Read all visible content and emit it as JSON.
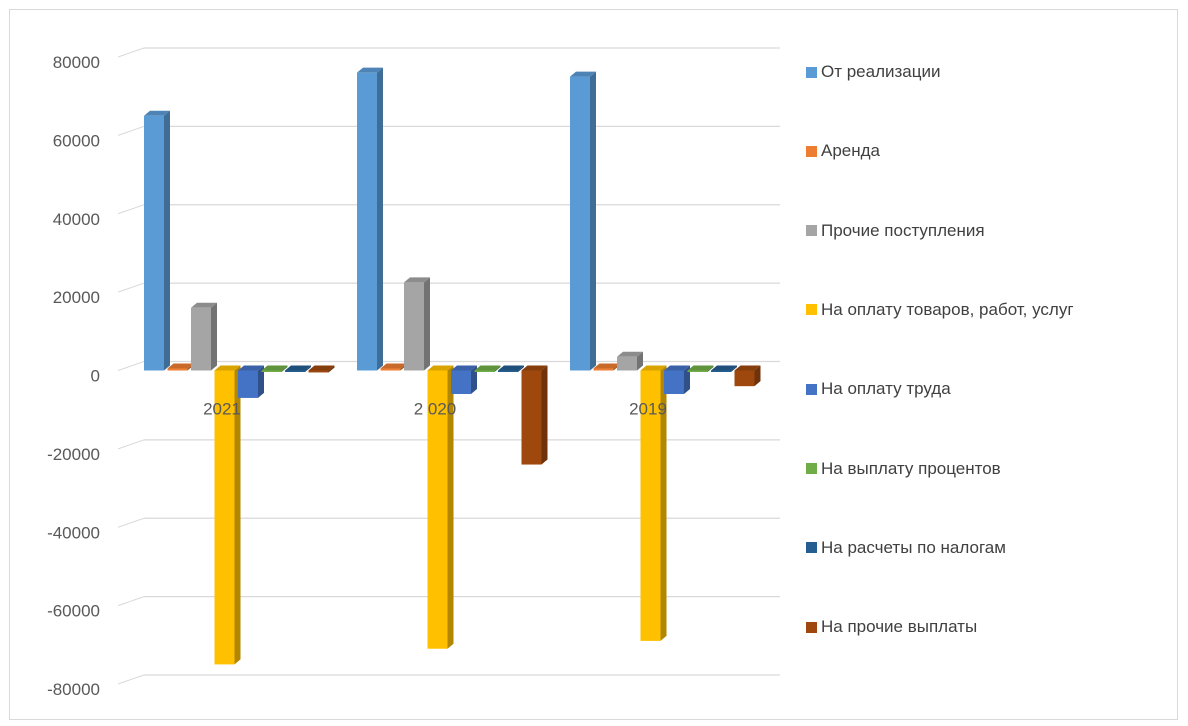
{
  "chart_data": {
    "type": "bar",
    "categories": [
      "2021",
      "2 020",
      "2019"
    ],
    "yticks": [
      "80000",
      "60000",
      "40000",
      "20000",
      "0",
      "-20000",
      "-40000",
      "-60000",
      "-80000"
    ],
    "ylim": [
      -80000,
      80000
    ],
    "grid": true,
    "legend_position": "right",
    "series": [
      {
        "name": "От реализации",
        "color": "#5b9bd5",
        "values": [
          65000,
          76000,
          75000
        ]
      },
      {
        "name": "Аренда",
        "color": "#ed7d31",
        "values": [
          500,
          500,
          500
        ]
      },
      {
        "name": "Прочие поступления",
        "color": "#a5a5a5",
        "values": [
          16000,
          22500,
          3500
        ]
      },
      {
        "name": "На оплату товаров, работ, услуг",
        "color": "#ffc000",
        "values": [
          -75000,
          -71000,
          -69000
        ]
      },
      {
        "name": "На оплату труда",
        "color": "#4472c4",
        "values": [
          -7000,
          -6000,
          -6000
        ]
      },
      {
        "name": "На выплату процентов",
        "color": "#70ad47",
        "values": [
          -300,
          -300,
          -300
        ]
      },
      {
        "name": "На расчеты по налогам",
        "color": "#255e91",
        "values": [
          -300,
          -300,
          -300
        ]
      },
      {
        "name": "На прочие выплаты",
        "color": "#9e480e",
        "values": [
          -500,
          -24000,
          -4000
        ]
      }
    ]
  }
}
